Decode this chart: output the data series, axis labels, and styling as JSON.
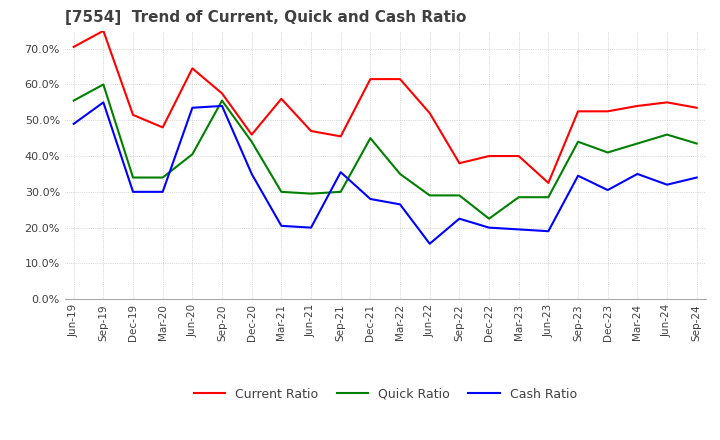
{
  "title": "[7554]  Trend of Current, Quick and Cash Ratio",
  "x_labels": [
    "Jun-19",
    "Sep-19",
    "Dec-19",
    "Mar-20",
    "Jun-20",
    "Sep-20",
    "Dec-20",
    "Mar-21",
    "Jun-21",
    "Sep-21",
    "Dec-21",
    "Mar-22",
    "Jun-22",
    "Sep-22",
    "Dec-22",
    "Mar-23",
    "Jun-23",
    "Sep-23",
    "Dec-23",
    "Mar-24",
    "Jun-24",
    "Sep-24"
  ],
  "current_ratio": [
    70.5,
    75.0,
    51.5,
    48.0,
    64.5,
    57.5,
    46.0,
    56.0,
    47.0,
    45.5,
    61.5,
    61.5,
    52.0,
    38.0,
    40.0,
    40.0,
    32.5,
    52.5,
    52.5,
    54.0,
    55.0,
    53.5
  ],
  "quick_ratio": [
    55.5,
    60.0,
    34.0,
    34.0,
    40.5,
    55.5,
    44.0,
    30.0,
    29.5,
    30.0,
    45.0,
    35.0,
    29.0,
    29.0,
    22.5,
    28.5,
    28.5,
    44.0,
    41.0,
    43.5,
    46.0,
    43.5
  ],
  "cash_ratio": [
    49.0,
    55.0,
    30.0,
    30.0,
    53.5,
    54.0,
    35.0,
    20.5,
    20.0,
    35.5,
    28.0,
    26.5,
    15.5,
    22.5,
    20.0,
    19.5,
    19.0,
    34.5,
    30.5,
    35.0,
    32.0,
    34.0
  ],
  "ylim": [
    0,
    75
  ],
  "yticks": [
    0,
    10,
    20,
    30,
    40,
    50,
    60,
    70
  ],
  "current_color": "#FF0000",
  "quick_color": "#008000",
  "cash_color": "#0000FF",
  "background_color": "#FFFFFF",
  "grid_color": "#BBBBBB",
  "title_color": "#404040",
  "legend_labels": [
    "Current Ratio",
    "Quick Ratio",
    "Cash Ratio"
  ]
}
